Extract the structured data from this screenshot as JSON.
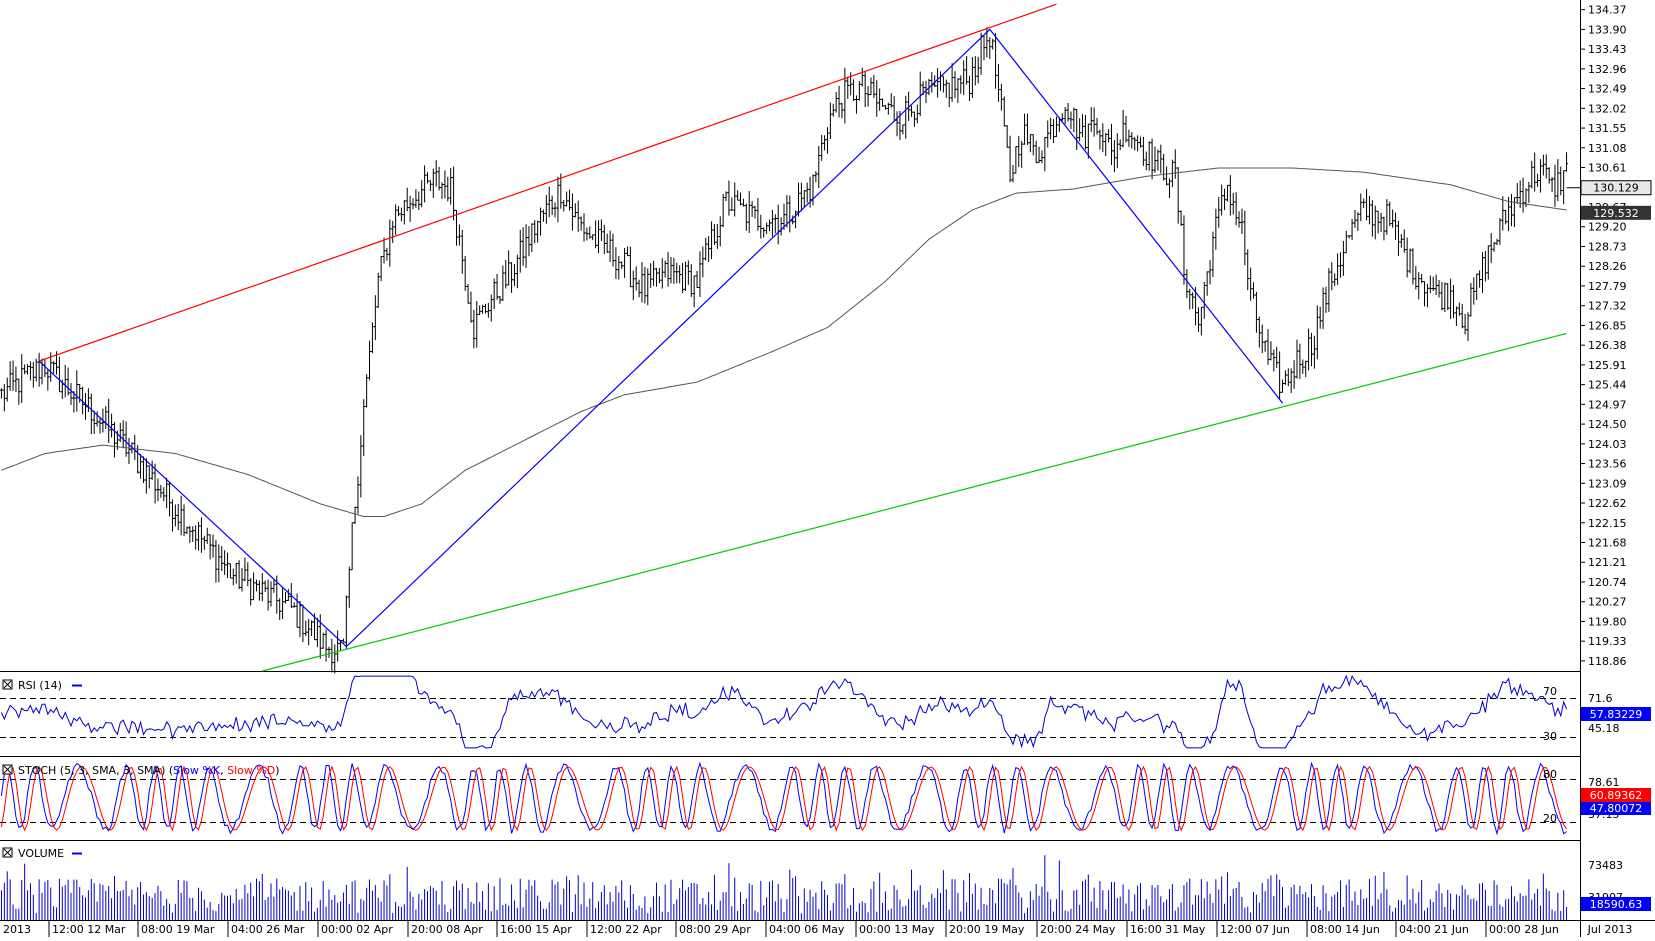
{
  "chart_data": {
    "type": "ohlc",
    "colors": {
      "bars": "#000000",
      "ma": "#555555",
      "zigzag": "#0000ff",
      "upper_trendline": "#ff0000",
      "lower_trendline": "#00cc00",
      "rsi": "#0000cc",
      "stoch_k": "#0000ff",
      "stoch_d": "#ff0000",
      "volume": "#0000cc",
      "badge_dark": "#333333",
      "badge_blue": "#0000ff",
      "badge_red": "#ff0000",
      "badge_gray": "#e8e8e8"
    },
    "price_panel": {
      "ylim": [
        118.62,
        134.6
      ],
      "y_ticks": [
        "134.37",
        "133.90",
        "133.43",
        "132.96",
        "132.49",
        "132.02",
        "131.55",
        "131.08",
        "130.61",
        "129.67",
        "129.20",
        "128.73",
        "128.26",
        "127.79",
        "127.32",
        "126.85",
        "126.38",
        "125.91",
        "125.44",
        "124.97",
        "124.50",
        "124.03",
        "123.56",
        "123.09",
        "122.62",
        "122.15",
        "121.68",
        "121.21",
        "120.74",
        "120.27",
        "119.80",
        "119.33",
        "118.86"
      ],
      "last_price": "130.129",
      "ma_value": "129.532",
      "anchors": [
        [
          0,
          125.2
        ],
        [
          8,
          125.6
        ],
        [
          15,
          125.9
        ],
        [
          22,
          125.4
        ],
        [
          30,
          124.9
        ],
        [
          45,
          123.8
        ],
        [
          60,
          122.5
        ],
        [
          80,
          120.9
        ],
        [
          100,
          120.1
        ],
        [
          112,
          119.2
        ],
        [
          118,
          119.1
        ],
        [
          121,
          121.9
        ],
        [
          125,
          124.9
        ],
        [
          130,
          127.9
        ],
        [
          135,
          129.4
        ],
        [
          142,
          129.9
        ],
        [
          150,
          130.3
        ],
        [
          155,
          130.1
        ],
        [
          158,
          128.9
        ],
        [
          163,
          126.8
        ],
        [
          168,
          127.4
        ],
        [
          175,
          128.0
        ],
        [
          185,
          129.3
        ],
        [
          193,
          130.1
        ],
        [
          198,
          129.4
        ],
        [
          203,
          129.0
        ],
        [
          212,
          128.5
        ],
        [
          222,
          127.7
        ],
        [
          230,
          128.1
        ],
        [
          240,
          127.9
        ],
        [
          250,
          129.8
        ],
        [
          260,
          129.4
        ],
        [
          270,
          129.4
        ],
        [
          280,
          130.2
        ],
        [
          285,
          131.7
        ],
        [
          290,
          132.3
        ],
        [
          297,
          132.5
        ],
        [
          303,
          132.1
        ],
        [
          310,
          131.8
        ],
        [
          318,
          132.3
        ],
        [
          326,
          132.5
        ],
        [
          334,
          132.7
        ],
        [
          338,
          133.4
        ],
        [
          341,
          133.8
        ],
        [
          345,
          131.9
        ],
        [
          348,
          130.4
        ],
        [
          352,
          131.5
        ],
        [
          357,
          130.9
        ],
        [
          362,
          131.5
        ],
        [
          367,
          132.2
        ],
        [
          373,
          131.3
        ],
        [
          378,
          131.8
        ],
        [
          383,
          130.9
        ],
        [
          388,
          131.6
        ],
        [
          395,
          131.0
        ],
        [
          400,
          130.6
        ],
        [
          405,
          130.4
        ],
        [
          408,
          128.2
        ],
        [
          413,
          126.9
        ],
        [
          418,
          128.9
        ],
        [
          423,
          130.2
        ],
        [
          428,
          129.1
        ],
        [
          431,
          127.5
        ],
        [
          437,
          126.0
        ],
        [
          442,
          125.4
        ],
        [
          447,
          126.0
        ],
        [
          452,
          126.4
        ],
        [
          458,
          127.8
        ],
        [
          465,
          129.0
        ],
        [
          470,
          129.6
        ],
        [
          478,
          129.4
        ],
        [
          487,
          128.2
        ],
        [
          495,
          127.6
        ],
        [
          500,
          127.6
        ],
        [
          505,
          127.0
        ],
        [
          512,
          128.4
        ],
        [
          520,
          129.6
        ],
        [
          527,
          130.3
        ],
        [
          531,
          130.6
        ],
        [
          535,
          130.1
        ],
        [
          540,
          130.5
        ]
      ],
      "ma_anchors": [
        [
          0,
          123.4
        ],
        [
          15,
          123.8
        ],
        [
          35,
          124.0
        ],
        [
          60,
          123.8
        ],
        [
          85,
          123.3
        ],
        [
          110,
          122.6
        ],
        [
          125,
          122.3
        ],
        [
          132,
          122.3
        ],
        [
          145,
          122.6
        ],
        [
          160,
          123.4
        ],
        [
          180,
          124.1
        ],
        [
          200,
          124.8
        ],
        [
          215,
          125.2
        ],
        [
          240,
          125.5
        ],
        [
          265,
          126.2
        ],
        [
          285,
          126.8
        ],
        [
          305,
          127.9
        ],
        [
          320,
          128.9
        ],
        [
          335,
          129.6
        ],
        [
          350,
          130.0
        ],
        [
          370,
          130.1
        ],
        [
          395,
          130.4
        ],
        [
          420,
          130.6
        ],
        [
          445,
          130.6
        ],
        [
          470,
          130.5
        ],
        [
          500,
          130.2
        ],
        [
          520,
          129.8
        ],
        [
          540,
          129.6
        ]
      ],
      "zigzag": [
        [
          13,
          126.0
        ],
        [
          119,
          119.2
        ],
        [
          341,
          133.9
        ],
        [
          442,
          125.0
        ]
      ],
      "upper_trendline": [
        [
          13,
          126.0
        ],
        [
          364,
          134.5
        ]
      ],
      "lower_trendline": [
        [
          90,
          118.62
        ],
        [
          540,
          126.66
        ]
      ]
    },
    "rsi_panel": {
      "label": "RSI (14)",
      "levels": [
        "70",
        "30"
      ],
      "y_ticks": [
        "71.6",
        "45.18"
      ],
      "last_value": "57.83229",
      "ylim": [
        19.0,
        81.0
      ]
    },
    "stoch_panel": {
      "label_prefix": "STOCH (5, 3, SMA, 3, SMA)",
      "k_label": "Slow %K",
      "d_label": "Slow %D",
      "levels": [
        "80",
        "20"
      ],
      "y_ticks": [
        "78.61",
        "37.15"
      ],
      "k_value": "60.89362",
      "d_value": "47.80072",
      "ylim": [
        -5.0,
        105.0
      ]
    },
    "volume_panel": {
      "label": "VOLUME",
      "y_ticks": [
        "73483",
        "31907"
      ],
      "last_value": "18590.63",
      "ylim": [
        0,
        95000
      ]
    },
    "x_labels": [
      "2013",
      "12:00 12 Mar",
      "08:00 19 Mar",
      "04:00 26 Mar",
      "00:00 02 Apr",
      "20:00 08 Apr",
      "16:00 15 Apr",
      "12:00 22 Apr",
      "08:00 29 Apr",
      "04:00 06 May",
      "00:00 13 May",
      "20:00 19 May",
      "20:00 24 May",
      "16:00 31 May",
      "12:00 07 Jun",
      "08:00 14 Jun",
      "04:00 21 Jun",
      "00:00 28 Jun",
      "Jul 2013"
    ]
  }
}
